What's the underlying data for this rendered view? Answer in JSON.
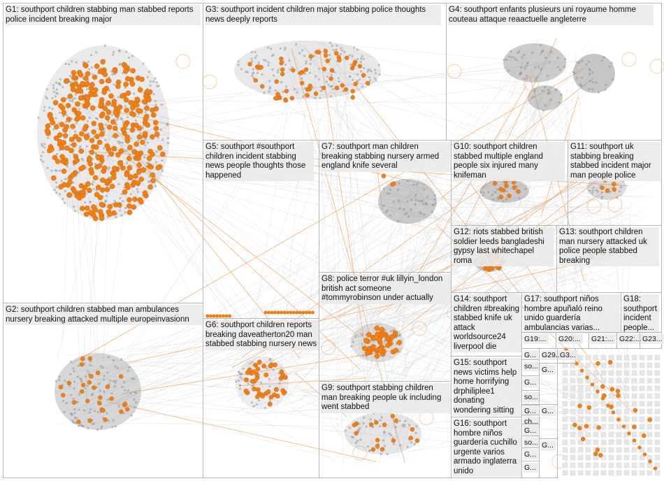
{
  "colors": {
    "node_highlight": "#f07f16",
    "node_base": "#8d8d8d",
    "edge": "#cfcfcf",
    "edge_highlight": "#f2a35c",
    "panel_border": "#b8b8b8",
    "label_bg": "#eaeaea"
  },
  "groups": [
    {
      "id": "g1",
      "label": "G1: southport children stabbing man stabbed reports police incident breaking major"
    },
    {
      "id": "g2",
      "label": "G2: southport children stabbed man ambulances nursery breaking attacked multiple europeinvasionn"
    },
    {
      "id": "g3",
      "label": "G3: southport incident children major stabbing police thoughts news deeply reports"
    },
    {
      "id": "g4",
      "label": "G4: southport enfants plusieurs uni royaume homme couteau attaque reaactuelle angleterre"
    },
    {
      "id": "g5",
      "label": "G5: southport #southport children incident stabbing news people thoughts those happened"
    },
    {
      "id": "g6",
      "label": "G6: southport children reports breaking daveatherton20 man stabbed stabbing nursery news"
    },
    {
      "id": "g7",
      "label": "G7: southport man children breaking stabbing nursery armed england knife several"
    },
    {
      "id": "g8",
      "label": "G8: police terror #uk lillyin_london british act someone #tommyrobinson under actually"
    },
    {
      "id": "g9",
      "label": "G9: southport stabbing children man breaking people uk including went stabbed"
    },
    {
      "id": "g10",
      "label": "G10: southport children stabbed multiple england people six injured many knifeman"
    },
    {
      "id": "g11",
      "label": "G11: southport uk stabbing breaking stabbed incident major man people police"
    },
    {
      "id": "g12",
      "label": "G12: riots stabbed british soldier leeds bangladeshi gypsy last whitechapel roma"
    },
    {
      "id": "g13",
      "label": "G13: southport children man nursery attacked uk police people stabbed breaking"
    },
    {
      "id": "g14",
      "label": "G14: southport children #breaking stabbed knife uk attack worldsource24 liverpool die"
    },
    {
      "id": "g15",
      "label": "G15: southport news victims help home horrifying drphiliplee1 donating wondering sitting"
    },
    {
      "id": "g16",
      "label": "G16: southport hombre niños guardería cuchillo urgente varios armado inglaterra unido"
    },
    {
      "id": "g17",
      "label": "G17: southport niños hombre apuñaló reino unido guardería ambulancias varias..."
    },
    {
      "id": "g18",
      "label": "G18: southport incident people..."
    },
    {
      "id": "g19",
      "label": "G19:..."
    },
    {
      "id": "g20",
      "label": "G20:..."
    },
    {
      "id": "g21",
      "label": "G21:..."
    },
    {
      "id": "g22",
      "label": "G22:..."
    },
    {
      "id": "g23",
      "label": "G23..."
    },
    {
      "id": "g24",
      "label": "G..."
    },
    {
      "id": "g25",
      "label": "G29..."
    },
    {
      "id": "g26",
      "label": "G3..."
    },
    {
      "id": "g27",
      "label": "so..."
    },
    {
      "id": "g28",
      "label": "G..."
    },
    {
      "id": "g29",
      "label": "so..."
    },
    {
      "id": "g30",
      "label": "G..."
    },
    {
      "id": "g31",
      "label": "ch..."
    },
    {
      "id": "g32",
      "label": "G..."
    },
    {
      "id": "g33",
      "label": "so..."
    },
    {
      "id": "g34",
      "label": "G..."
    },
    {
      "id": "g35",
      "label": "G..."
    },
    {
      "id": "g36",
      "label": "G..."
    },
    {
      "id": "g37",
      "label": "G..."
    },
    {
      "id": "g38",
      "label": "G..."
    }
  ]
}
